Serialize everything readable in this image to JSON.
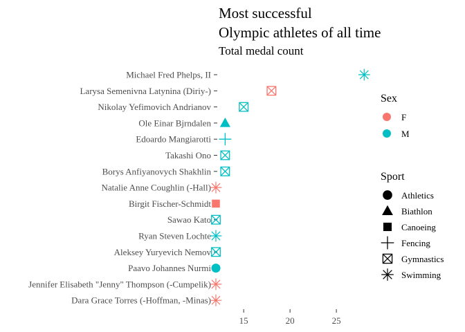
{
  "chart_data": {
    "type": "scatter",
    "title_lines": [
      "Most successful",
      "Olympic athletes of all time"
    ],
    "subtitle": "Total medal count",
    "xlim": [
      12.3,
      28.8
    ],
    "x_ticks": [
      15,
      20,
      25
    ],
    "grid": false,
    "colors": {
      "F": "#F8766D",
      "M": "#00BFC4"
    },
    "points": [
      {
        "name": "Michael Fred Phelps, II",
        "x": 28,
        "sex": "M",
        "sport": "Swimming"
      },
      {
        "name": "Larysa Semenivna Latynina (Diriy-)",
        "x": 18,
        "sex": "F",
        "sport": "Gymnastics"
      },
      {
        "name": "Nikolay Yefimovich Andrianov",
        "x": 15,
        "sex": "M",
        "sport": "Gymnastics"
      },
      {
        "name": "Ole Einar Bjrndalen",
        "x": 13,
        "sex": "M",
        "sport": "Biathlon"
      },
      {
        "name": "Edoardo Mangiarotti",
        "x": 13,
        "sex": "M",
        "sport": "Fencing"
      },
      {
        "name": "Takashi Ono",
        "x": 13,
        "sex": "M",
        "sport": "Gymnastics"
      },
      {
        "name": "Borys Anfiyanovych Shakhlin",
        "x": 13,
        "sex": "M",
        "sport": "Gymnastics"
      },
      {
        "name": "Natalie Anne Coughlin (-Hall)",
        "x": 12,
        "sex": "F",
        "sport": "Swimming"
      },
      {
        "name": "Birgit Fischer-Schmidt",
        "x": 12,
        "sex": "F",
        "sport": "Canoeing"
      },
      {
        "name": "Sawao Kato",
        "x": 12,
        "sex": "M",
        "sport": "Gymnastics"
      },
      {
        "name": "Ryan Steven Lochte",
        "x": 12,
        "sex": "M",
        "sport": "Swimming"
      },
      {
        "name": "Aleksey Yuryevich Nemov",
        "x": 12,
        "sex": "M",
        "sport": "Gymnastics"
      },
      {
        "name": "Paavo Johannes Nurmi",
        "x": 12,
        "sex": "M",
        "sport": "Athletics"
      },
      {
        "name": "Jennifer Elisabeth \"Jenny\" Thompson (-Cumpelik)",
        "x": 12,
        "sex": "F",
        "sport": "Swimming"
      },
      {
        "name": "Dara Grace Torres (-Hoffman, -Minas)",
        "x": 12,
        "sex": "F",
        "sport": "Swimming"
      }
    ],
    "legends": {
      "sex": {
        "title": "Sex",
        "items": [
          "F",
          "M"
        ]
      },
      "sport": {
        "title": "Sport",
        "items": [
          "Athletics",
          "Biathlon",
          "Canoeing",
          "Fencing",
          "Gymnastics",
          "Swimming"
        ]
      }
    }
  }
}
